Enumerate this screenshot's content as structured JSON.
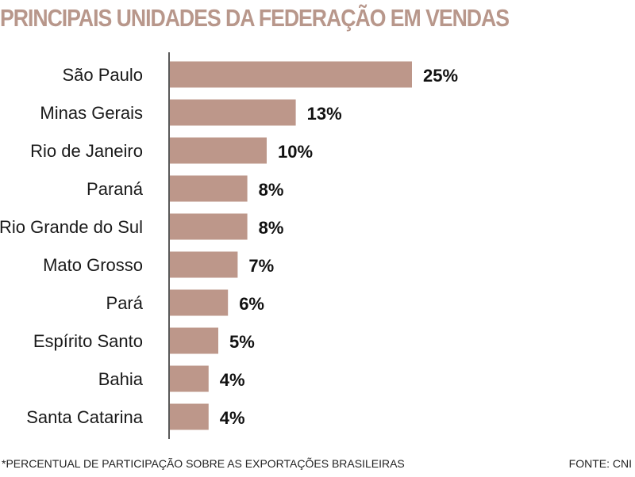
{
  "chart_data": {
    "type": "bar",
    "orientation": "horizontal",
    "title": "PRINCIPAIS UNIDADES DA FEDERAÇÃO EM VENDAS",
    "categories": [
      "São Paulo",
      "Minas Gerais",
      "Rio de Janeiro",
      "Paraná",
      "Rio Grande do Sul",
      "Mato Grosso",
      "Pará",
      "Espírito Santo",
      "Bahia",
      "Santa Catarina"
    ],
    "values": [
      25,
      13,
      10,
      8,
      8,
      7,
      6,
      5,
      4,
      4
    ],
    "value_labels": [
      "25%",
      "13%",
      "10%",
      "8%",
      "8%",
      "7%",
      "6%",
      "5%",
      "4%",
      "4%"
    ],
    "unit": "%",
    "bar_color": "#bd978a",
    "title_color": "#b8978b",
    "xlim": [
      0,
      25
    ],
    "grid": false,
    "legend": "none"
  },
  "footnote": "*PERCENTUAL DE PARTICIPAÇÃO SOBRE AS EXPORTAÇÕES BRASILEIRAS",
  "source": "FONTE: CNI"
}
